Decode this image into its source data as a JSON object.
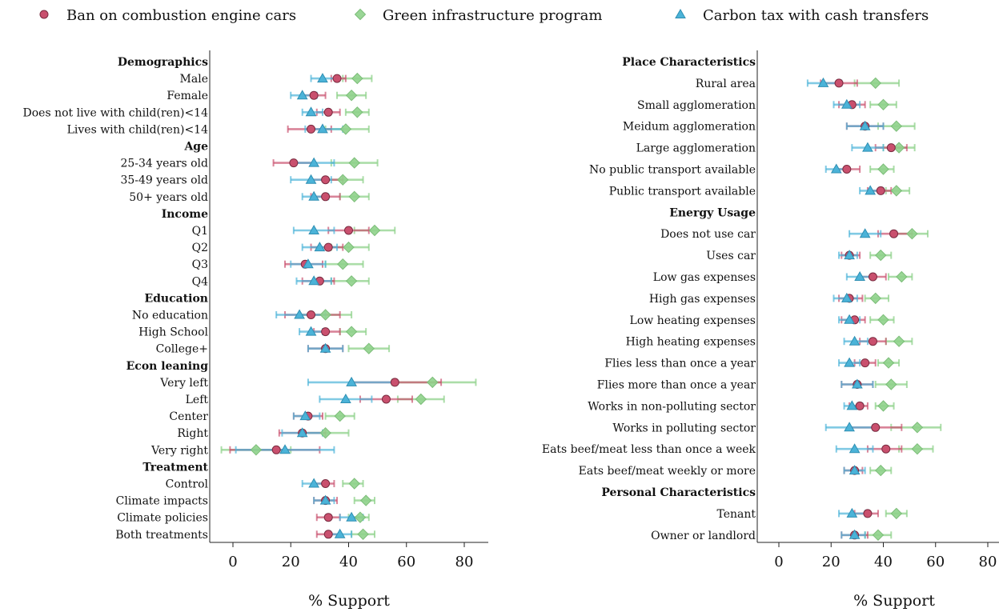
{
  "legend": [
    {
      "label": "Ban on combustion engine cars",
      "marker": "circle",
      "color": "#c9506e",
      "icon": "circle-marker-icon"
    },
    {
      "label": "Green infrastructure program",
      "marker": "diamond",
      "color": "#8fd18b",
      "icon": "diamond-marker-icon"
    },
    {
      "label": "Carbon tax with cash transfers",
      "marker": "triangle",
      "color": "#4bb3d8",
      "icon": "triangle-marker-icon"
    }
  ],
  "chart_data": [
    {
      "type": "scatter",
      "xlabel": "% Support",
      "xticks": [
        0,
        20,
        40,
        60,
        80
      ],
      "xlim": [
        -4,
        88
      ],
      "grid": false,
      "legend_placement": "top",
      "series": [
        "Ban on combustion engine cars",
        "Green infrastructure program",
        "Carbon tax with cash transfers"
      ],
      "rows": [
        {
          "label": "Demographics",
          "header": true
        },
        {
          "label": "Male",
          "points": [
            [
              36,
              34,
              39
            ],
            [
              43,
              38,
              48
            ],
            [
              31,
              27,
              36
            ]
          ]
        },
        {
          "label": "Female",
          "points": [
            [
              28,
              24,
              32
            ],
            [
              41,
              36,
              46
            ],
            [
              24,
              20,
              29
            ]
          ]
        },
        {
          "label": "Does not live with child(ren)<14",
          "points": [
            [
              33,
              29,
              37
            ],
            [
              43,
              39,
              47
            ],
            [
              27,
              24,
              31
            ]
          ]
        },
        {
          "label": "Lives with child(ren)<14",
          "points": [
            [
              27,
              19,
              34
            ],
            [
              39,
              32,
              47
            ],
            [
              31,
              25,
              38
            ]
          ]
        },
        {
          "label": "Age",
          "header": true
        },
        {
          "label": "25-34 years old",
          "points": [
            [
              21,
              14,
              28
            ],
            [
              42,
              34,
              50
            ],
            [
              28,
              21,
              35
            ]
          ]
        },
        {
          "label": "35-49 years old",
          "points": [
            [
              32,
              27,
              38
            ],
            [
              38,
              32,
              45
            ],
            [
              27,
              20,
              34
            ]
          ]
        },
        {
          "label": "50+ years old",
          "points": [
            [
              32,
              27,
              37
            ],
            [
              42,
              37,
              47
            ],
            [
              28,
              24,
              33
            ]
          ]
        },
        {
          "label": "Income",
          "header": true
        },
        {
          "label": "Q1",
          "points": [
            [
              40,
              33,
              47
            ],
            [
              49,
              42,
              56
            ],
            [
              28,
              21,
              35
            ]
          ]
        },
        {
          "label": "Q2",
          "points": [
            [
              33,
              27,
              38
            ],
            [
              40,
              34,
              47
            ],
            [
              30,
              24,
              36
            ]
          ]
        },
        {
          "label": "Q3",
          "points": [
            [
              25,
              18,
              31
            ],
            [
              38,
              32,
              45
            ],
            [
              26,
              20,
              32
            ]
          ]
        },
        {
          "label": "Q4",
          "points": [
            [
              30,
              24,
              35
            ],
            [
              41,
              34,
              47
            ],
            [
              28,
              22,
              34
            ]
          ]
        },
        {
          "label": "Education",
          "header": true
        },
        {
          "label": "No education",
          "points": [
            [
              27,
              18,
              37
            ],
            [
              32,
              23,
              41
            ],
            [
              23,
              15,
              32
            ]
          ]
        },
        {
          "label": "High School",
          "points": [
            [
              32,
              28,
              37
            ],
            [
              41,
              37,
              46
            ],
            [
              27,
              23,
              31
            ]
          ]
        },
        {
          "label": "College+",
          "points": [
            [
              32,
              26,
              38
            ],
            [
              47,
              40,
              54
            ],
            [
              32,
              26,
              38
            ]
          ]
        },
        {
          "label": "Econ leaning",
          "header": true
        },
        {
          "label": "Very left",
          "points": [
            [
              56,
              41,
              72
            ],
            [
              69,
              55,
              84
            ],
            [
              41,
              26,
              56
            ]
          ]
        },
        {
          "label": "Left",
          "points": [
            [
              53,
              44,
              62
            ],
            [
              65,
              57,
              73
            ],
            [
              39,
              30,
              48
            ]
          ]
        },
        {
          "label": "Center",
          "points": [
            [
              26,
              21,
              31
            ],
            [
              37,
              32,
              42
            ],
            [
              25,
              21,
              30
            ]
          ]
        },
        {
          "label": "Right",
          "points": [
            [
              24,
              16,
              32
            ],
            [
              32,
              24,
              40
            ],
            [
              24,
              17,
              31
            ]
          ]
        },
        {
          "label": "Very right",
          "points": [
            [
              15,
              -1,
              30
            ],
            [
              8,
              -4,
              20
            ],
            [
              18,
              1,
              35
            ]
          ]
        },
        {
          "label": "Treatment",
          "header": true
        },
        {
          "label": "Control",
          "points": [
            [
              32,
              28,
              35
            ],
            [
              42,
              38,
              45
            ],
            [
              28,
              24,
              32
            ]
          ]
        },
        {
          "label": "Climate impacts",
          "points": [
            [
              32,
              28,
              36
            ],
            [
              46,
              42,
              49
            ],
            [
              32,
              28,
              35
            ]
          ]
        },
        {
          "label": "Climate policies",
          "points": [
            [
              33,
              29,
              37
            ],
            [
              44,
              40,
              47
            ],
            [
              41,
              37,
              45
            ]
          ]
        },
        {
          "label": "Both treatments",
          "points": [
            [
              33,
              29,
              37
            ],
            [
              45,
              41,
              49
            ],
            [
              37,
              33,
              41
            ]
          ]
        }
      ]
    },
    {
      "type": "scatter",
      "xlabel": "% Support",
      "xticks": [
        0,
        20,
        40,
        60,
        80
      ],
      "xlim": [
        -4,
        88
      ],
      "grid": false,
      "legend_placement": "top",
      "series": [
        "Ban on combustion engine cars",
        "Green infrastructure program",
        "Carbon tax with cash transfers"
      ],
      "rows": [
        {
          "label": "Place Characteristics",
          "header": true
        },
        {
          "label": "Rural area",
          "points": [
            [
              23,
              16,
              30
            ],
            [
              37,
              29,
              46
            ],
            [
              17,
              11,
              24
            ]
          ]
        },
        {
          "label": "Small agglomeration",
          "points": [
            [
              28,
              23,
              33
            ],
            [
              40,
              35,
              45
            ],
            [
              26,
              21,
              31
            ]
          ]
        },
        {
          "label": "Meidum agglomeration",
          "points": [
            [
              33,
              26,
              40
            ],
            [
              45,
              38,
              52
            ],
            [
              33,
              26,
              40
            ]
          ]
        },
        {
          "label": "Large agglomeration",
          "points": [
            [
              43,
              37,
              49
            ],
            [
              46,
              40,
              52
            ],
            [
              34,
              28,
              40
            ]
          ]
        },
        {
          "label": "No public transport available",
          "points": [
            [
              26,
              22,
              31
            ],
            [
              40,
              35,
              44
            ],
            [
              22,
              18,
              26
            ]
          ]
        },
        {
          "label": "Public transport available",
          "points": [
            [
              39,
              34,
              43
            ],
            [
              45,
              41,
              50
            ],
            [
              35,
              31,
              40
            ]
          ]
        },
        {
          "label": "Energy Usage",
          "header": true
        },
        {
          "label": "Does not use car",
          "points": [
            [
              44,
              38,
              51
            ],
            [
              51,
              44,
              57
            ],
            [
              33,
              27,
              39
            ]
          ]
        },
        {
          "label": "Uses car",
          "points": [
            [
              27,
              24,
              31
            ],
            [
              39,
              35,
              43
            ],
            [
              27,
              23,
              30
            ]
          ]
        },
        {
          "label": "Low gas expenses",
          "points": [
            [
              36,
              31,
              41
            ],
            [
              47,
              42,
              51
            ],
            [
              31,
              26,
              36
            ]
          ]
        },
        {
          "label": "High gas expenses",
          "points": [
            [
              27,
              23,
              32
            ],
            [
              37,
              33,
              42
            ],
            [
              26,
              21,
              30
            ]
          ]
        },
        {
          "label": "Low heating expenses",
          "points": [
            [
              29,
              24,
              33
            ],
            [
              40,
              35,
              44
            ],
            [
              27,
              23,
              31
            ]
          ]
        },
        {
          "label": "High heating expenses",
          "points": [
            [
              36,
              31,
              41
            ],
            [
              46,
              41,
              51
            ],
            [
              29,
              25,
              34
            ]
          ]
        },
        {
          "label": "Flies less than once a year",
          "points": [
            [
              33,
              29,
              37
            ],
            [
              42,
              38,
              46
            ],
            [
              27,
              23,
              31
            ]
          ]
        },
        {
          "label": "Flies more than once a year",
          "points": [
            [
              30,
              24,
              36
            ],
            [
              43,
              37,
              49
            ],
            [
              30,
              24,
              36
            ]
          ]
        },
        {
          "label": "Works in non-polluting sector",
          "points": [
            [
              31,
              27,
              34
            ],
            [
              40,
              37,
              44
            ],
            [
              28,
              25,
              32
            ]
          ]
        },
        {
          "label": "Works in polluting sector",
          "points": [
            [
              37,
              27,
              47
            ],
            [
              53,
              43,
              62
            ],
            [
              27,
              18,
              36
            ]
          ]
        },
        {
          "label": "Eats beef/meat less than once a week",
          "points": [
            [
              41,
              34,
              47
            ],
            [
              53,
              46,
              59
            ],
            [
              29,
              22,
              36
            ]
          ]
        },
        {
          "label": "Eats beef/meat weekly or more",
          "points": [
            [
              29,
              25,
              32
            ],
            [
              39,
              35,
              43
            ],
            [
              29,
              25,
              33
            ]
          ]
        },
        {
          "label": "Personal Characteristics",
          "header": true
        },
        {
          "label": "Tenant",
          "points": [
            [
              34,
              29,
              38
            ],
            [
              45,
              41,
              49
            ],
            [
              28,
              23,
              33
            ]
          ]
        },
        {
          "label": "Owner or landlord",
          "points": [
            [
              29,
              24,
              34
            ],
            [
              38,
              33,
              43
            ],
            [
              29,
              24,
              33
            ]
          ]
        }
      ]
    }
  ]
}
